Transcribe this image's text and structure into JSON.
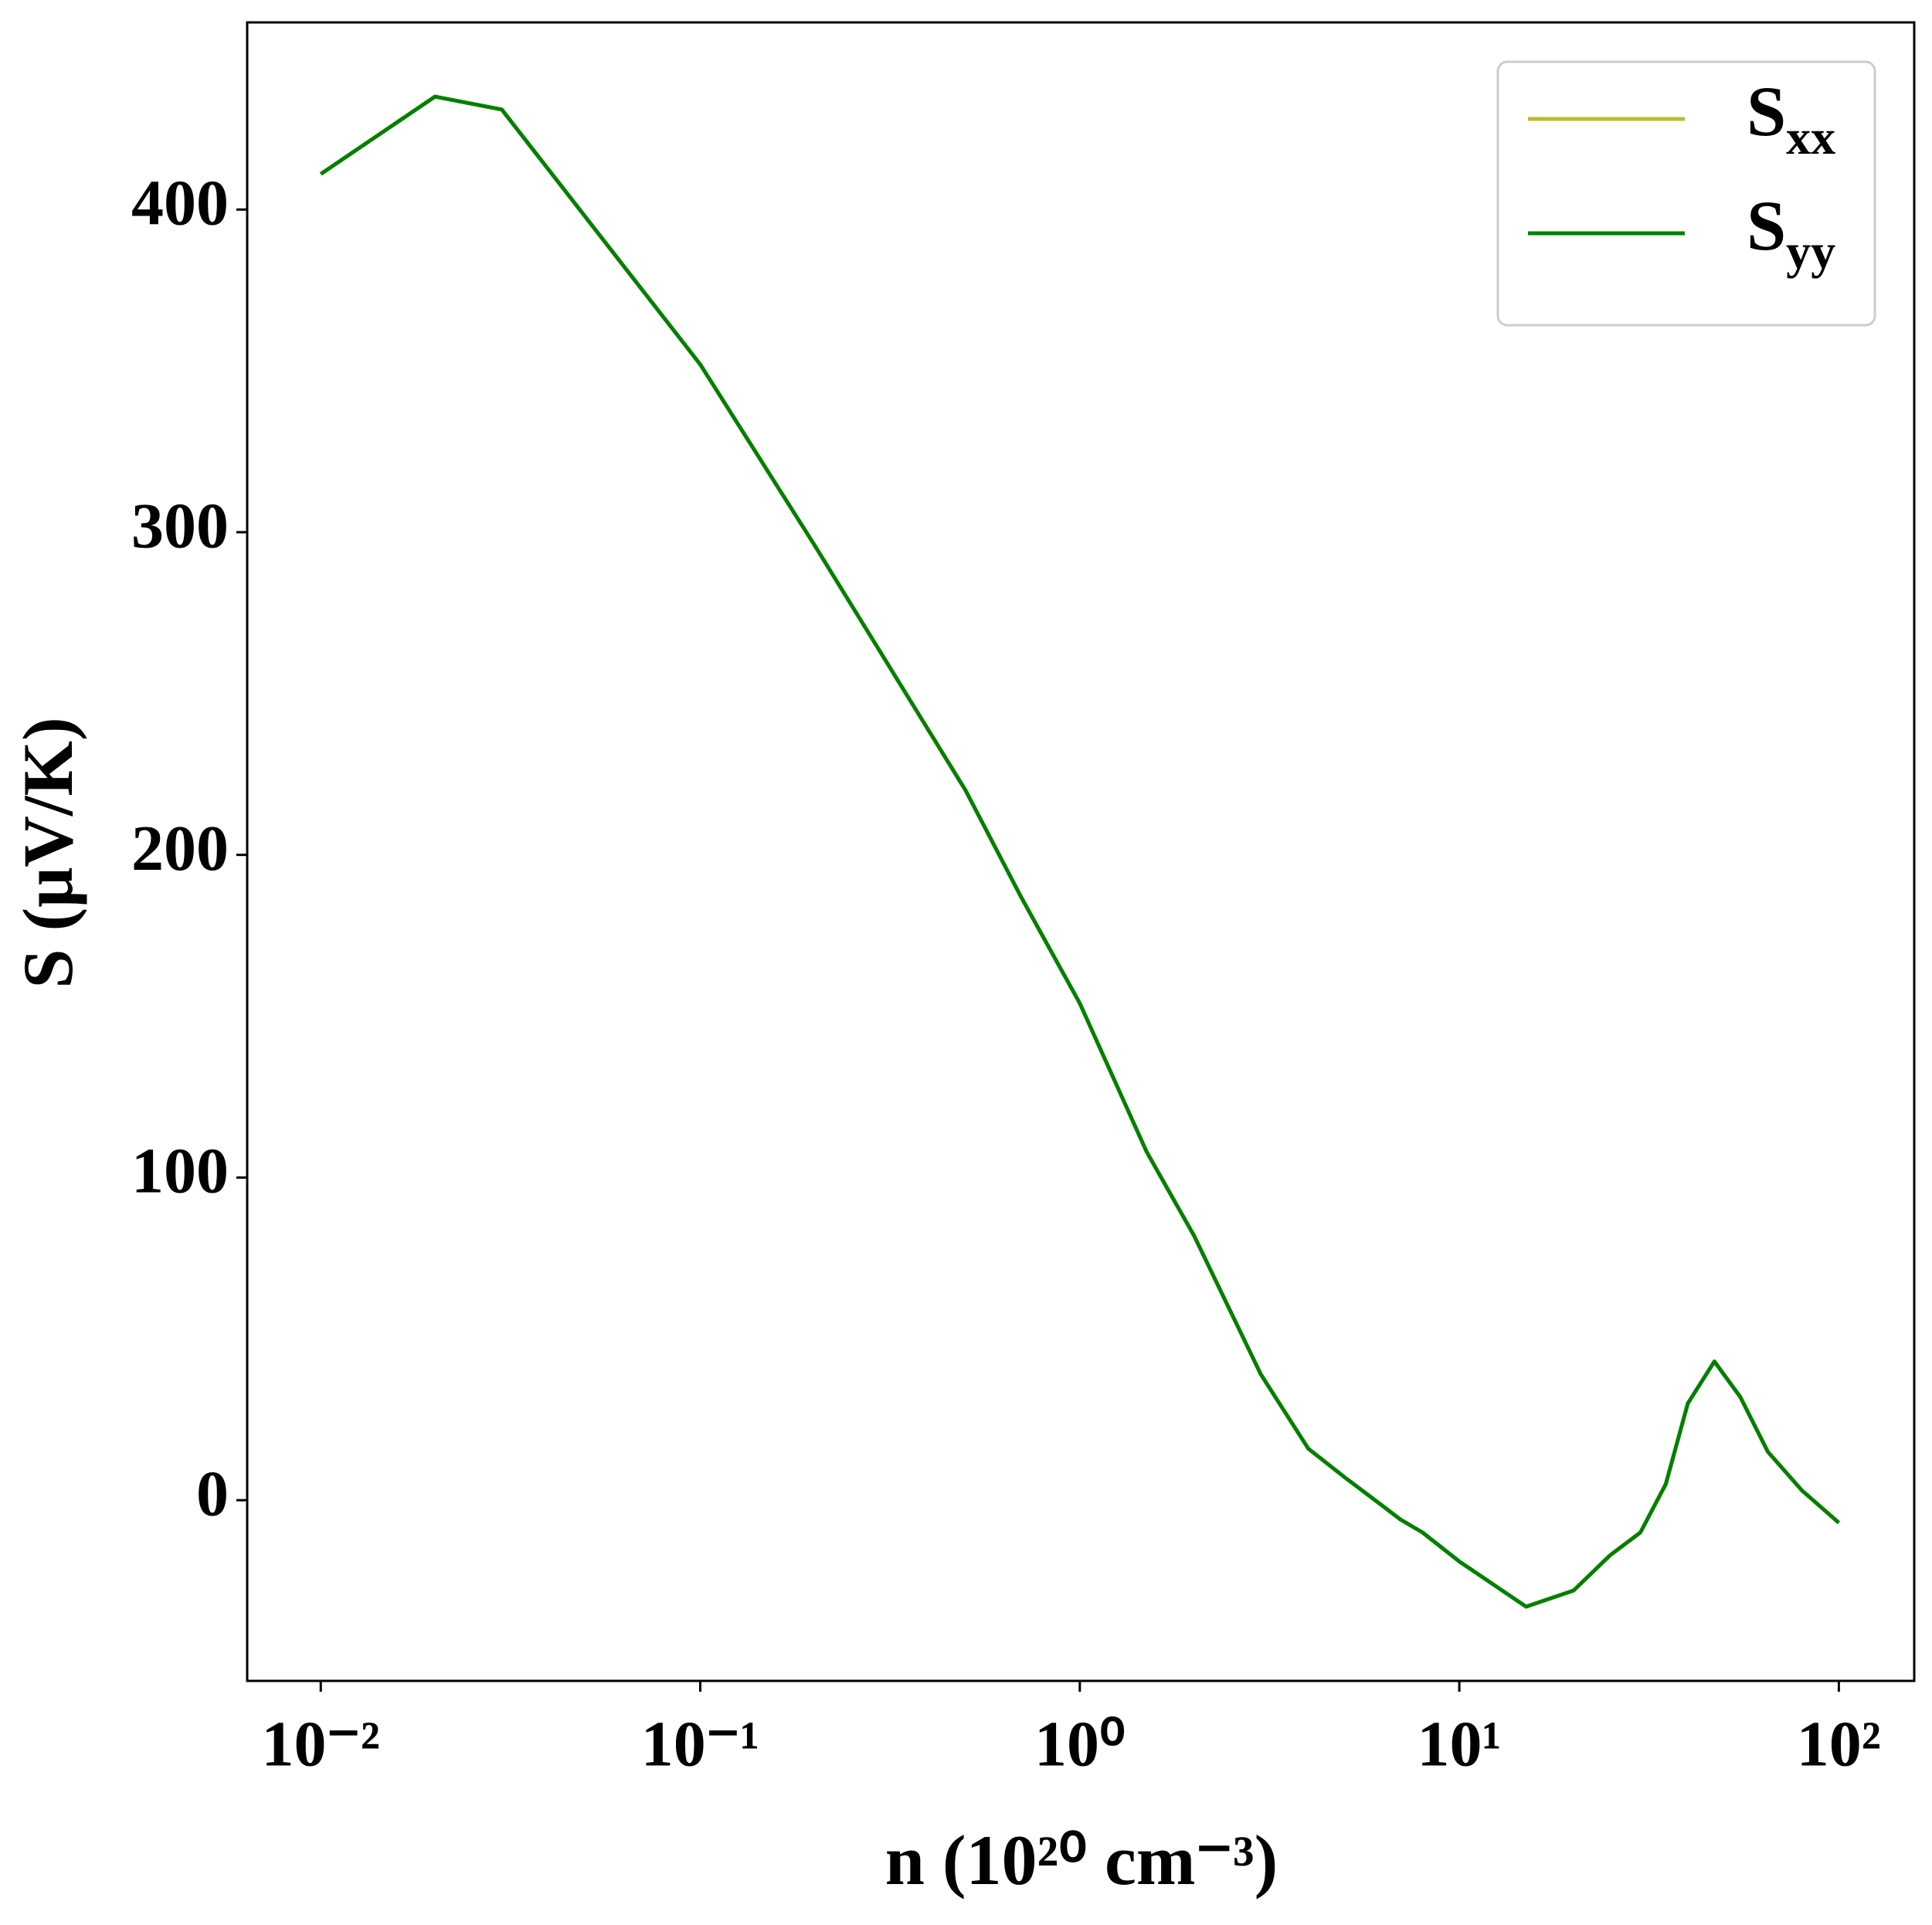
{
  "chart_data": {
    "type": "line",
    "xlabel": "n (10²⁰ cm⁻³)",
    "ylabel": "S (μV/K)",
    "x": [
      0.01,
      0.02,
      0.03,
      0.1,
      0.2,
      0.5,
      0.7,
      1,
      1.5,
      2,
      3,
      4,
      5,
      6,
      7,
      8,
      10,
      15,
      20,
      25,
      30,
      35,
      40,
      47,
      55,
      65,
      80,
      100
    ],
    "series": [
      {
        "name": "Sxx",
        "color": "#bcbd22",
        "values": [
          411,
          435,
          431,
          352,
          296,
          220,
          187,
          154,
          108,
          82,
          39,
          16,
          7,
          0,
          -6,
          -10,
          -19,
          -33,
          -28,
          -17,
          -10,
          5,
          30,
          43,
          32,
          15,
          3,
          -7
        ]
      },
      {
        "name": "Syy",
        "color": "#008000",
        "values": [
          411,
          435,
          431,
          352,
          296,
          220,
          187,
          154,
          108,
          82,
          39,
          16,
          7,
          0,
          -6,
          -10,
          -19,
          -33,
          -28,
          -17,
          -10,
          5,
          30,
          43,
          32,
          15,
          3,
          -7
        ]
      }
    ],
    "xscale": "log",
    "xlim": [
      0.0064,
      158
    ],
    "xticks": [
      {
        "value": 0.01,
        "label": "10⁻²"
      },
      {
        "value": 0.1,
        "label": "10⁻¹"
      },
      {
        "value": 1,
        "label": "10⁰"
      },
      {
        "value": 10,
        "label": "10¹"
      },
      {
        "value": 100,
        "label": "10²"
      }
    ],
    "ylim": [
      -56,
      458
    ],
    "yticks": [
      0,
      100,
      200,
      300,
      400
    ],
    "legend": "upper right",
    "grid": false
  }
}
